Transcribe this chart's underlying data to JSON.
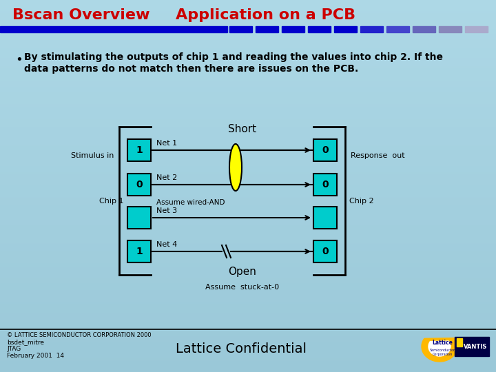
{
  "bg_color": "#ADD8E6",
  "title_left": "Bscan Overview",
  "title_right": "Application on a PCB",
  "title_color": "#CC0000",
  "title_fontsize": 16,
  "bar_solid_color": "#0000CC",
  "bar_segment_colors": [
    "#0000CC",
    "#0000CC",
    "#0000CC",
    "#0000CC",
    "#0000CC",
    "#2222CC",
    "#4444CC",
    "#6666BB",
    "#8888BB",
    "#AAAACC"
  ],
  "bullet_text_line1": "By stimulating the outputs of chip 1 and reading the values into chip 2. If the",
  "bullet_text_line2": "data patterns do not match then there are issues on the PCB.",
  "chip_color": "#00CCCC",
  "short_ellipse_color": "#FFFF00",
  "chip1_values": [
    "1",
    "0",
    "",
    "1"
  ],
  "chip2_values": [
    "0",
    "0",
    "",
    "0"
  ],
  "stimulus_in": "Stimulus in",
  "response_out": "Response  out",
  "chip1_label": "Chip 1",
  "chip2_label": "Chip 2",
  "short_label": "Short",
  "net_labels": [
    "Net 1",
    "Net 2",
    "Net 3",
    "Net 4"
  ],
  "assumed_wired_and": "Assume wired-AND",
  "open_label": "Open",
  "assume_stuck": "Assume  stuck-at-0",
  "footer_copyright": "© LATTICE SEMICONDUCTOR CORPORATION 2000",
  "footer_left1": "bsdet_mitre",
  "footer_left2": "JTAG",
  "footer_left3": "February 2001  14",
  "footer_center": "Lattice Confidential",
  "lattice_logo_color": "#FFB800",
  "vantis_color": "#000044"
}
